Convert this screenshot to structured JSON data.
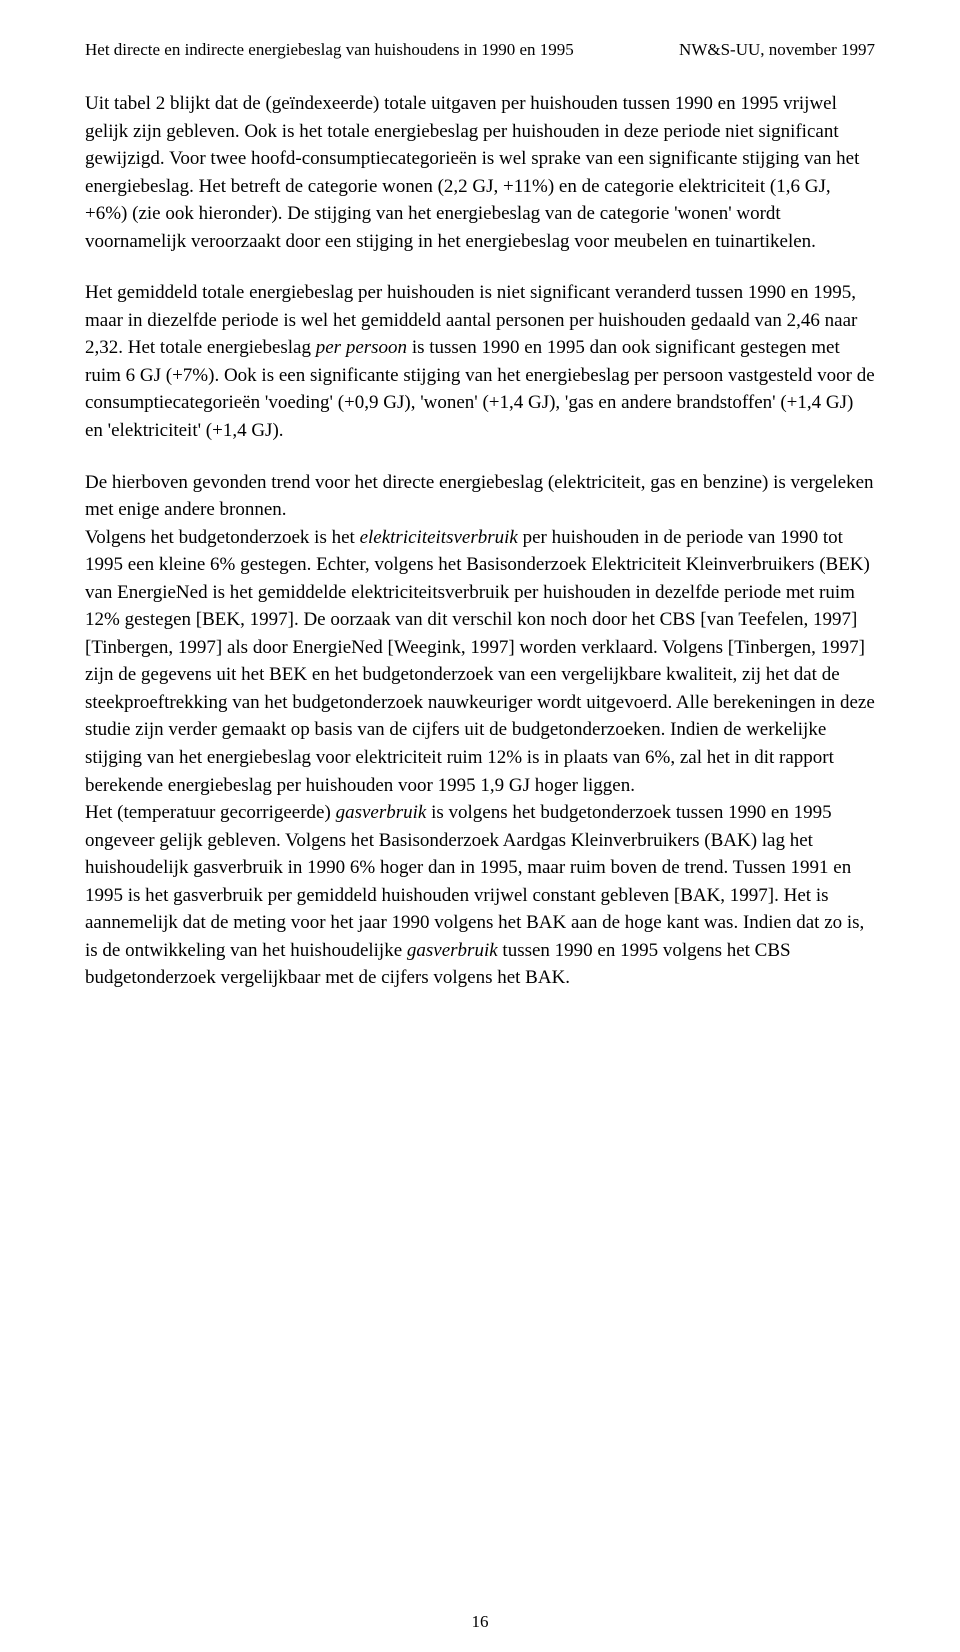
{
  "header": {
    "left": "Het directe en indirecte energiebeslag van huishoudens in 1990 en 1995",
    "right": "NW&S-UU, november 1997"
  },
  "paragraphs": {
    "p1_a": "Uit tabel 2 blijkt dat de (geïndexeerde) totale uitgaven per huishouden tussen 1990 en 1995 vrijwel gelijk zijn gebleven. Ook is het totale energiebeslag per huishouden in deze periode niet significant gewijzigd. Voor twee hoofd-consumptiecategorieën is wel sprake van een significante stijging van het energiebeslag. Het betreft de categorie wonen (2,2 GJ, +11%) en de categorie elektriciteit (1,6 GJ, +6%) (zie ook hieronder). De stijging van het energiebeslag van de categorie 'wonen' wordt voornamelijk veroorzaakt door een stijging in het energiebeslag voor meubelen en tuinartikelen.",
    "p2_a": "Het gemiddeld totale energiebeslag per huishouden is niet significant veranderd tussen 1990 en 1995, maar in diezelfde periode is wel het gemiddeld aantal personen per huishouden gedaald van 2,46 naar 2,32. Het totale energiebeslag ",
    "p2_i1": "per persoon",
    "p2_b": " is tussen 1990 en 1995 dan ook  significant gestegen met ruim 6 GJ (+7%). Ook is een significante stijging van het energiebeslag per persoon vastgesteld voor de consumptiecategorieën 'voeding' (+0,9 GJ), 'wonen' (+1,4 GJ), 'gas en andere brandstoffen' (+1,4 GJ) en 'elektriciteit' (+1,4 GJ).",
    "p3_a": "De hierboven gevonden trend voor het directe energiebeslag (elektriciteit, gas en benzine) is vergeleken met enige andere bronnen.",
    "p4_a": "Volgens het budgetonderzoek is het ",
    "p4_i1": "elektriciteitsverbruik",
    "p4_b": " per huishouden in de periode van 1990 tot 1995 een kleine 6% gestegen. Echter, volgens het Basisonderzoek Elektriciteit Kleinverbruikers (BEK) van EnergieNed is het gemiddelde elektriciteitsverbruik per huishouden in dezelfde periode met ruim 12% gestegen  [BEK, 1997]. De oorzaak van dit verschil kon noch door  het CBS [van Teefelen, 1997] [Tinbergen, 1997] als door EnergieNed [Weegink, 1997] worden verklaard. Volgens [Tinbergen, 1997] zijn de gegevens uit het BEK en het budgetonderzoek van een vergelijkbare kwaliteit, zij het dat de steekproeftrekking van het budgetonderzoek nauwkeuriger wordt uitgevoerd. Alle berekeningen in deze studie zijn verder gemaakt op basis van de cijfers uit de budgetonderzoeken. Indien de werkelijke stijging van het energiebeslag voor elektriciteit ruim 12% is in plaats van 6%, zal het in dit rapport berekende energiebeslag per huishouden voor 1995 1,9 GJ hoger liggen.",
    "p5_a": "Het (temperatuur gecorrigeerde) ",
    "p5_i1": "gasverbruik",
    "p5_b": " is volgens het budgetonderzoek tussen 1990 en 1995 ongeveer gelijk gebleven. Volgens het Basisonderzoek Aardgas Kleinverbruikers (BAK) lag het huishoudelijk gasverbruik in 1990 6% hoger dan in 1995, maar ruim boven de trend. Tussen 1991 en 1995 is het gasverbruik per gemiddeld huishouden vrijwel constant gebleven [BAK, 1997]. Het is aannemelijk dat de meting voor het jaar 1990 volgens het BAK aan de hoge kant was. Indien dat zo is, is de ontwikkeling van het huishoudelijke ",
    "p5_i2": "gasverbruik",
    "p5_c": " tussen 1990 en 1995 volgens het CBS budgetonderzoek vergelijkbaar met de cijfers volgens het BAK."
  },
  "pageNumber": "16"
}
